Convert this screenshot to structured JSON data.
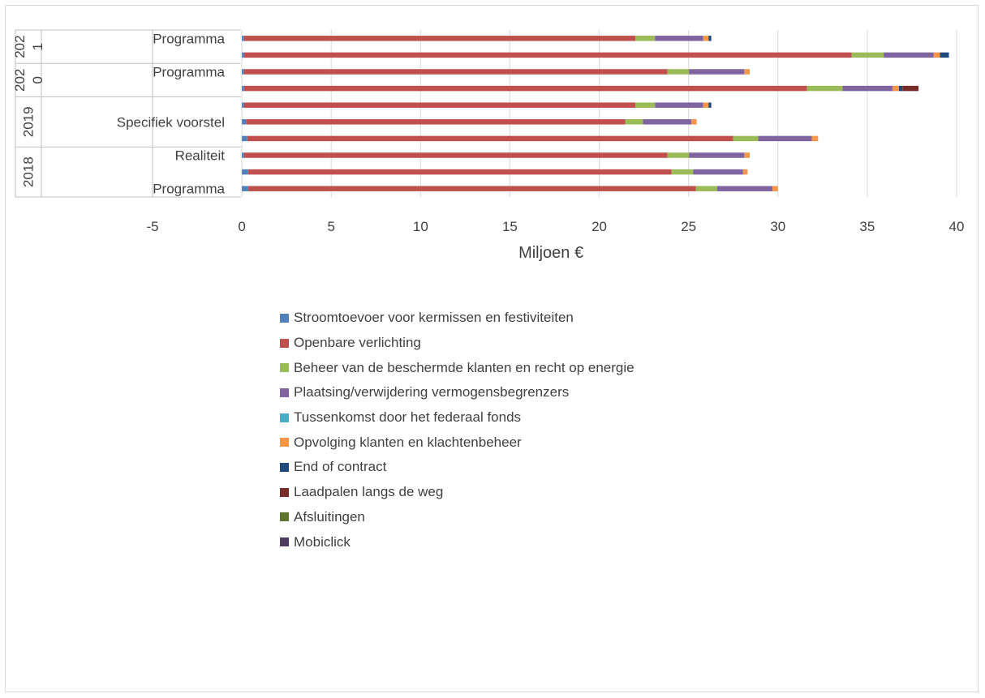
{
  "chart_data": {
    "type": "bar",
    "orientation": "horizontal",
    "stacked": true,
    "xlabel": "Miljoen €",
    "xlim": [
      -5,
      40
    ],
    "xticks": [
      -5,
      0,
      5,
      10,
      15,
      20,
      25,
      30,
      35,
      40
    ],
    "grid": true,
    "legend_position": "bottom",
    "category_groups": [
      {
        "label": "2018",
        "rows": 3
      },
      {
        "label": "2019",
        "rows": 3
      },
      {
        "label": "2020",
        "label_lines": [
          "202",
          "0"
        ],
        "rows": 2
      },
      {
        "label": "2021",
        "label_lines": [
          "202",
          "1"
        ],
        "rows": 2
      }
    ],
    "row_labels": [
      "Programma",
      "",
      "Realiteit",
      "",
      "Specifiek voorstel",
      "",
      "",
      "Programma",
      "",
      "Programma"
    ],
    "series": [
      {
        "name": "Stroomtoevoer voor kermissen en festiviteiten",
        "color": "#4f81bd",
        "values": [
          0.35,
          0.35,
          0.12,
          0.3,
          0.25,
          0.12,
          0.12,
          0.12,
          0.12,
          0.12
        ]
      },
      {
        "name": "Openbare verlichting",
        "color": "#c0504d",
        "values": [
          25.05,
          23.7,
          23.7,
          27.2,
          21.2,
          21.9,
          31.5,
          23.7,
          34.0,
          21.9
        ]
      },
      {
        "name": "Beheer van de beschermde klanten en recht op energie",
        "color": "#9bbb59",
        "values": [
          1.2,
          1.2,
          1.2,
          1.4,
          1.0,
          1.1,
          2.0,
          1.2,
          1.8,
          1.1
        ]
      },
      {
        "name": "Plaatsing/verwijdering vermogensbegrenzers",
        "color": "#8064a2",
        "values": [
          3.1,
          2.8,
          3.1,
          3.0,
          2.7,
          2.7,
          2.8,
          3.1,
          2.8,
          2.7
        ]
      },
      {
        "name": "Tussenkomst door het federaal fonds",
        "color": "#4bacc6",
        "values": [
          0,
          0,
          0,
          0,
          0,
          0,
          0,
          0,
          0,
          0
        ]
      },
      {
        "name": "Opvolging klanten en klachtenbeheer",
        "color": "#f79646",
        "values": [
          0.3,
          0.25,
          0.3,
          0.35,
          0.3,
          0.3,
          0.35,
          0.3,
          0.35,
          0.3
        ]
      },
      {
        "name": "End of contract",
        "color": "#1f497d",
        "values": [
          0,
          0,
          0,
          0,
          0,
          0.15,
          0.2,
          0,
          0.5,
          0.15
        ]
      },
      {
        "name": "Laadpalen langs de weg",
        "color": "#772c2a",
        "values": [
          0,
          0,
          0,
          0,
          0,
          0,
          0.9,
          0,
          0,
          0
        ]
      },
      {
        "name": "Afsluitingen",
        "color": "#5f7530",
        "values": [
          0,
          0,
          0,
          0,
          0,
          0,
          0,
          0,
          0,
          0
        ]
      },
      {
        "name": "Mobiclick",
        "color": "#4d3b62",
        "values": [
          0,
          0,
          0,
          0,
          0,
          0,
          0,
          0,
          0,
          0
        ]
      }
    ]
  }
}
